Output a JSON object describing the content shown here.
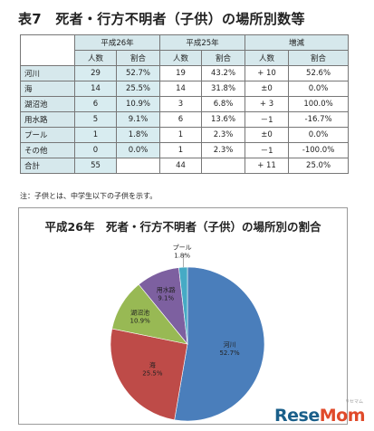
{
  "title": "表7　死者・行方不明者（子供）の場所別数等",
  "table": {
    "groups": [
      "平成26年",
      "平成25年",
      "増減"
    ],
    "columns": [
      "人数",
      "割合",
      "人数",
      "割合",
      "人数",
      "割合"
    ],
    "rows": [
      {
        "place": "河川",
        "values": [
          "29",
          "52.7%",
          "19",
          "43.2%",
          "+ 10",
          "52.6%"
        ]
      },
      {
        "place": "海",
        "values": [
          "14",
          "25.5%",
          "14",
          "31.8%",
          "±0",
          "0.0%"
        ]
      },
      {
        "place": "湖沼池",
        "values": [
          "6",
          "10.9%",
          "3",
          "6.8%",
          "+ 3",
          "100.0%"
        ]
      },
      {
        "place": "用水路",
        "values": [
          "5",
          "9.1%",
          "6",
          "13.6%",
          "－1",
          "-16.7%"
        ]
      },
      {
        "place": "プール",
        "values": [
          "1",
          "1.8%",
          "1",
          "2.3%",
          "±0",
          "0.0%"
        ]
      },
      {
        "place": "その他",
        "values": [
          "0",
          "0.0%",
          "1",
          "2.3%",
          "－1",
          "-100.0%"
        ]
      },
      {
        "place": "合計",
        "values": [
          "55",
          "",
          "44",
          "",
          "+ 11",
          "25.0%"
        ]
      }
    ]
  },
  "note": "注：子供とは、中学生以下の子供を示す。",
  "chart_data": {
    "type": "pie",
    "title": "平成26年　死者・行方不明者（子供）の場所別の割合",
    "slices": [
      {
        "name": "河川",
        "value": 52.7,
        "label": "52.7%",
        "color": "#4a7ebb"
      },
      {
        "name": "海",
        "value": 25.5,
        "label": "25.5%",
        "color": "#be4b48"
      },
      {
        "name": "湖沼池",
        "value": 10.9,
        "label": "10.9%",
        "color": "#98b954"
      },
      {
        "name": "用水路",
        "value": 9.1,
        "label": "9.1%",
        "color": "#7d60a0"
      },
      {
        "name": "プール",
        "value": 1.8,
        "label": "1.8%",
        "color": "#46aac5"
      }
    ]
  },
  "logo": {
    "main": "Rese",
    "accent": "Mom",
    "sub": "リセマム"
  }
}
